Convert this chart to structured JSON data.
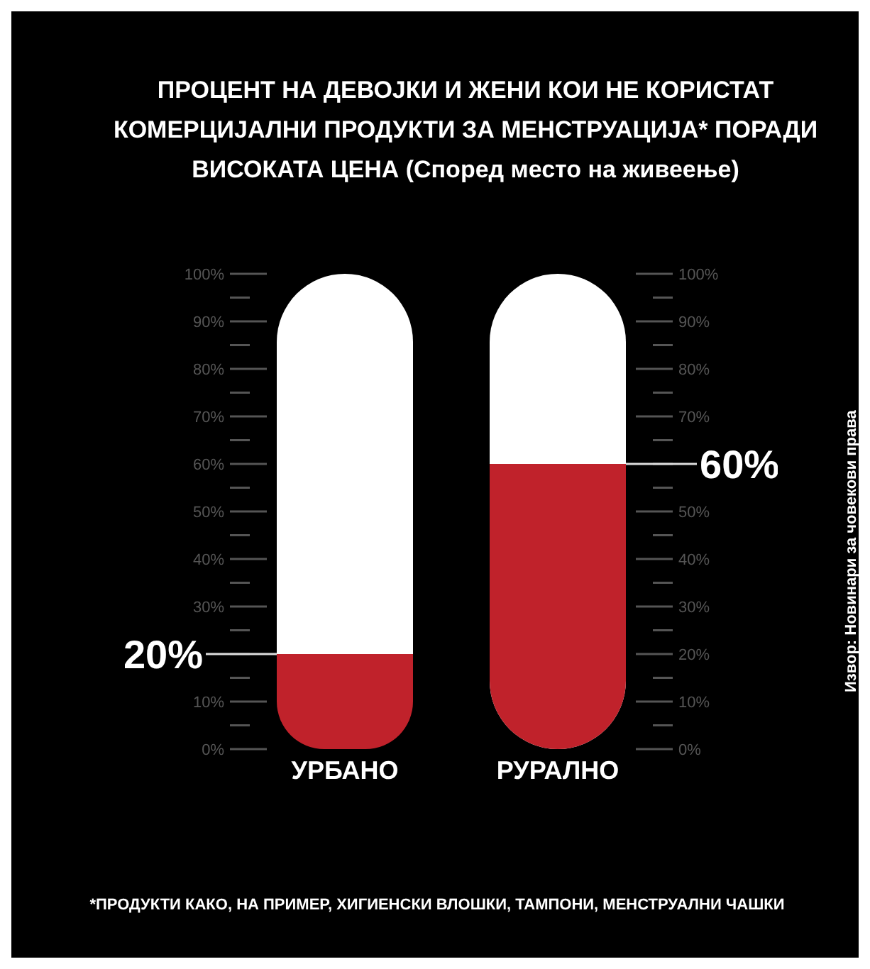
{
  "chart_data": {
    "type": "bar",
    "title": "ПРОЦЕНТ НА ДЕВОЈКИ И ЖЕНИ КОИ НЕ КОРИСТАТ КОМЕРЦИЈАЛНИ ПРОДУКТИ ЗА МЕНСТРУАЦИЈА* ПОРАДИ ВИСОКАТА ЦЕНА  (Според место на живеење)",
    "categories": [
      "УРБАНО",
      "РУРАЛНО"
    ],
    "values": [
      20,
      60
    ],
    "color": "#c0222b",
    "value_labels": [
      "20%",
      "60%"
    ],
    "ylim": [
      0,
      100
    ],
    "yticks": [
      {
        "value": 0,
        "label": "0%"
      },
      {
        "value": 5,
        "label": null
      },
      {
        "value": 10,
        "label": "10%"
      },
      {
        "value": 15,
        "label": null
      },
      {
        "value": 20,
        "label": null
      },
      {
        "value": 25,
        "label": null
      },
      {
        "value": 30,
        "label": "30%"
      },
      {
        "value": 35,
        "label": null
      },
      {
        "value": 40,
        "label": "40%"
      },
      {
        "value": 45,
        "label": null
      },
      {
        "value": 50,
        "label": "50%"
      },
      {
        "value": 55,
        "label": null
      },
      {
        "value": 60,
        "label": "60%"
      },
      {
        "value": 65,
        "label": null
      },
      {
        "value": 70,
        "label": "70%"
      },
      {
        "value": 75,
        "label": null
      },
      {
        "value": 80,
        "label": "80%"
      },
      {
        "value": 85,
        "label": null
      },
      {
        "value": 90,
        "label": "90%"
      },
      {
        "value": 95,
        "label": null
      },
      {
        "value": 100,
        "label": "100%"
      }
    ],
    "y2lim": [
      0,
      100
    ],
    "y2ticks": [
      {
        "value": 0,
        "label": "0%"
      },
      {
        "value": 5,
        "label": null
      },
      {
        "value": 10,
        "label": "10%"
      },
      {
        "value": 15,
        "label": null
      },
      {
        "value": 20,
        "label": "20%"
      },
      {
        "value": 25,
        "label": null
      },
      {
        "value": 30,
        "label": "30%"
      },
      {
        "value": 35,
        "label": null
      },
      {
        "value": 40,
        "label": "40%"
      },
      {
        "value": 45,
        "label": null
      },
      {
        "value": 50,
        "label": "50%"
      },
      {
        "value": 55,
        "label": null
      },
      {
        "value": 60,
        "label": null
      },
      {
        "value": 65,
        "label": null
      },
      {
        "value": 70,
        "label": "70%"
      },
      {
        "value": 75,
        "label": null
      },
      {
        "value": 80,
        "label": "80%"
      },
      {
        "value": 85,
        "label": null
      },
      {
        "value": 90,
        "label": "90%"
      },
      {
        "value": 95,
        "label": null
      },
      {
        "value": 100,
        "label": "100%"
      }
    ],
    "annotations": [
      "*ПРОДУКТИ КАКО, НА ПРИМЕР, ХИГИЕНСКИ ВЛОШКИ, ТАМПОНИ, МЕНСТРУАЛНИ ЧАШКИ",
      "Извор: Новинари за човекови права"
    ]
  }
}
